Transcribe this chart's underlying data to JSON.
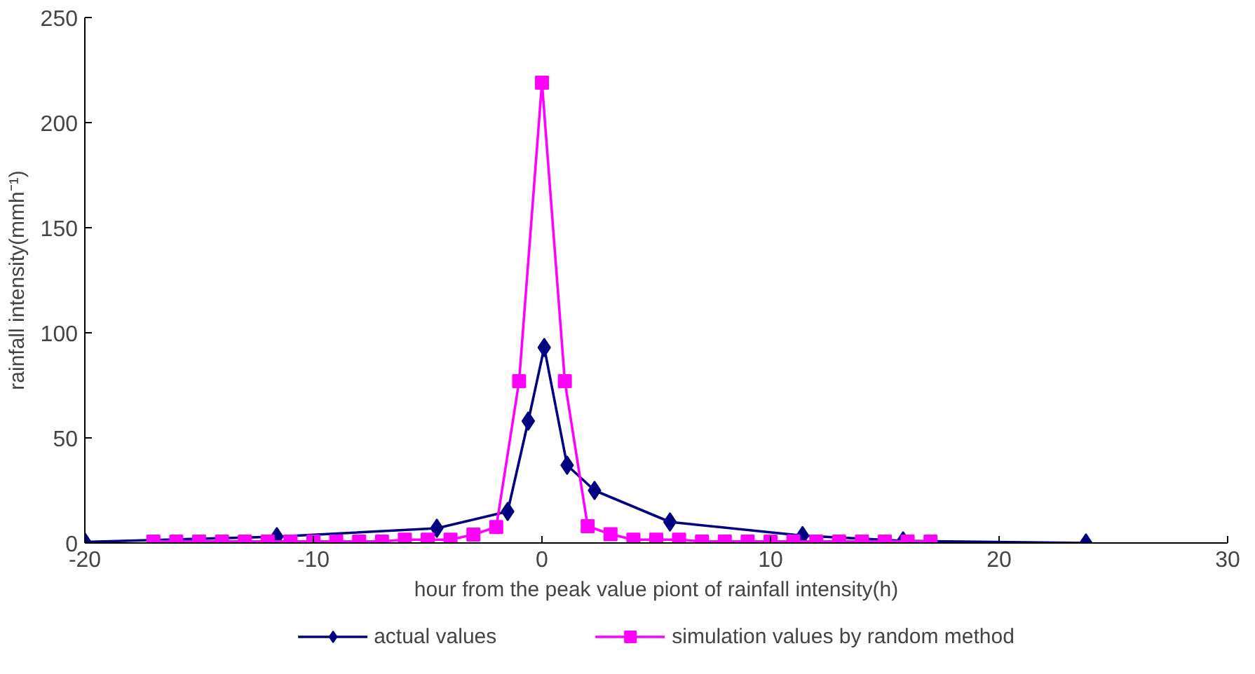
{
  "chart_data": {
    "type": "line",
    "xlabel": "hour from the peak value piont of rainfall intensity(h)",
    "ylabel": "rainfall intensity(mmh⁻¹)",
    "xlim": [
      -20,
      30
    ],
    "xticks": [
      -20,
      -10,
      0,
      10,
      20,
      30
    ],
    "ylim": [
      0,
      250
    ],
    "yticks": [
      0,
      50,
      100,
      150,
      200,
      250
    ],
    "grid": false,
    "legend": "bottom",
    "series": [
      {
        "name": "actual values",
        "color": "#000080",
        "marker": "diamond",
        "x": [
          -20,
          -11.6,
          -4.6,
          -1.5,
          -0.6,
          0.1,
          1.1,
          2.3,
          5.6,
          11.4,
          15.8,
          23.8
        ],
        "values": [
          0.5,
          3,
          7,
          15,
          58,
          93,
          37,
          25,
          10,
          3.5,
          1,
          0
        ]
      },
      {
        "name": "simulation values by random method",
        "color": "#ff00ff",
        "marker": "square",
        "x": [
          -17,
          -16,
          -15,
          -14,
          -13,
          -12,
          -11,
          -10,
          -9,
          -8,
          -7,
          -6,
          -5,
          -4,
          -3,
          -2,
          -1,
          0,
          1,
          2,
          3,
          4,
          5,
          6,
          7,
          8,
          9,
          10,
          11,
          12,
          13,
          14,
          15,
          16,
          17
        ],
        "values": [
          0.7,
          0.7,
          0.7,
          0.7,
          0.7,
          0.7,
          0.7,
          0.7,
          0.7,
          0.7,
          0.7,
          1.6,
          1.6,
          1.6,
          4,
          7.6,
          77,
          219,
          77,
          8,
          4.2,
          1.6,
          1.6,
          1.6,
          0.7,
          0.7,
          0.7,
          0.7,
          0.7,
          0.7,
          0.7,
          0.7,
          0.7,
          0.7,
          0.7
        ]
      }
    ]
  }
}
